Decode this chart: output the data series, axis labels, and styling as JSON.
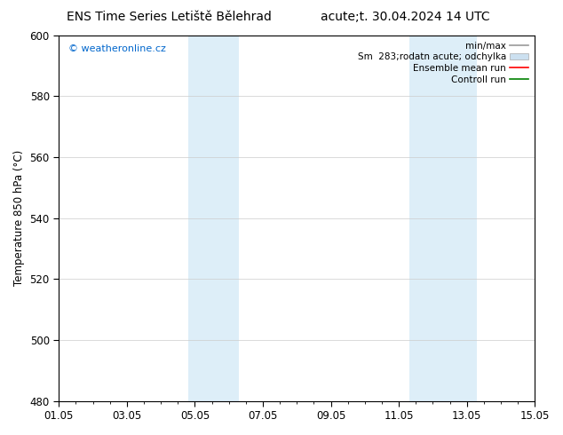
{
  "title_left": "ENS Time Series Letiště Bělehrad",
  "title_right": "acute;t. 30.04.2024 14 UTC",
  "ylabel": "Temperature 850 hPa (°C)",
  "watermark": "© weatheronline.cz",
  "watermark_color": "#0066cc",
  "ylim": [
    480,
    600
  ],
  "yticks": [
    480,
    500,
    520,
    540,
    560,
    580,
    600
  ],
  "xtick_labels": [
    "01.05",
    "03.05",
    "05.05",
    "07.05",
    "09.05",
    "11.05",
    "13.05",
    "15.05"
  ],
  "xtick_positions": [
    0,
    2,
    4,
    6,
    8,
    10,
    12,
    14
  ],
  "shaded_bands": [
    {
      "x_start": 3.8,
      "x_end": 5.3,
      "color": "#ddeef8"
    },
    {
      "x_start": 10.3,
      "x_end": 12.3,
      "color": "#ddeef8"
    }
  ],
  "legend_entries": [
    {
      "label": "min/max",
      "color": "#999999",
      "linestyle": "-",
      "linewidth": 1.2,
      "type": "line"
    },
    {
      "label": "Sm  283;rodatn acute; odchylka",
      "color": "#cce0f0",
      "edgecolor": "#aaaaaa",
      "type": "patch"
    },
    {
      "label": "Ensemble mean run",
      "color": "red",
      "linestyle": "-",
      "linewidth": 1.2,
      "type": "line"
    },
    {
      "label": "Controll run",
      "color": "green",
      "linestyle": "-",
      "linewidth": 1.2,
      "type": "line"
    }
  ],
  "bg_color": "#ffffff",
  "plot_bg_color": "#ffffff",
  "grid_color": "#cccccc",
  "title_fontsize": 10,
  "axis_fontsize": 8.5,
  "tick_fontsize": 8.5,
  "legend_fontsize": 7.5
}
